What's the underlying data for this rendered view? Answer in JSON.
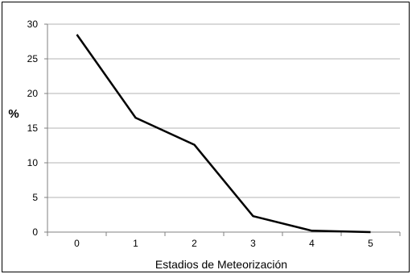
{
  "chart_data": {
    "type": "line",
    "title": "",
    "xlabel": "Estadios de Meteorización",
    "ylabel": "%",
    "x": [
      0,
      1,
      2,
      3,
      4,
      5
    ],
    "x_tick_labels": [
      "0",
      "1",
      "2",
      "3",
      "4",
      "5"
    ],
    "y_ticks": [
      0,
      5,
      10,
      15,
      20,
      25,
      30
    ],
    "y_tick_labels": [
      "0",
      "5",
      "10",
      "15",
      "20",
      "25",
      "30"
    ],
    "ylim": [
      0,
      30
    ],
    "grid": true,
    "legend": "none",
    "series": [
      {
        "values": [
          28.5,
          16.5,
          12.6,
          2.3,
          0.2,
          0.0
        ],
        "color": "#000000"
      }
    ],
    "colors": {
      "line": "#000000",
      "grid": "#b3b3b3",
      "axis": "#808080"
    }
  }
}
